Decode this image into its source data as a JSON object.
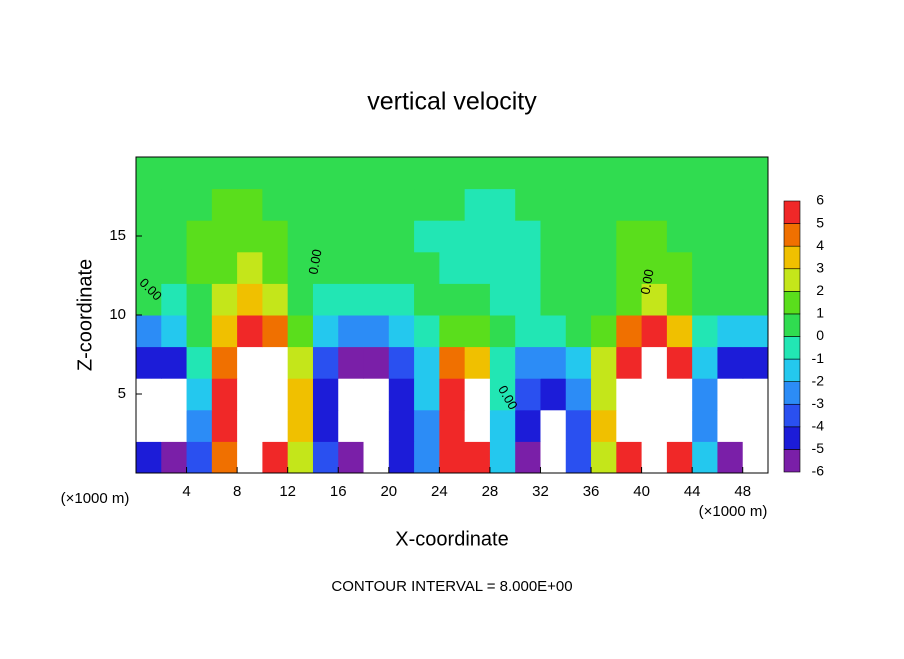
{
  "chart_data": {
    "type": "heatmap",
    "title": "vertical velocity",
    "x_label": "X-coordinate",
    "y_label": "Z-coordinate",
    "x_unit_labels": [
      "(×1000 m)",
      "(×1000 m)"
    ],
    "note": "CONTOUR INTERVAL = 8.000E+00",
    "contour_labels": [
      "0.00",
      "0.00",
      "0.00",
      "0.00"
    ],
    "xlim": [
      0,
      50
    ],
    "ylim": [
      0,
      20
    ],
    "xticks": [
      4,
      8,
      12,
      16,
      20,
      24,
      28,
      32,
      36,
      40,
      44,
      48
    ],
    "yticks": [
      5,
      10,
      15
    ],
    "x": [
      1,
      3,
      5,
      7,
      9,
      11,
      13,
      15,
      17,
      19,
      21,
      23,
      25,
      27,
      29,
      31,
      33,
      35,
      37,
      39,
      41,
      43,
      45,
      47,
      49
    ],
    "z": [
      1,
      3,
      5,
      7,
      9,
      11,
      13,
      15,
      17,
      19
    ],
    "values": [
      [
        -5,
        -6,
        -4,
        4,
        7,
        6,
        2,
        -4,
        -6,
        -7,
        -5,
        -3,
        5,
        6,
        -2,
        -6,
        -7,
        -4,
        2,
        6,
        8,
        6,
        -2,
        -6,
        -7
      ],
      [
        -7,
        -7,
        -3,
        5,
        8,
        8,
        3,
        -5,
        -7,
        -8,
        -5,
        -3,
        6,
        7,
        -2,
        -5,
        -7,
        -4,
        3,
        7,
        9,
        8,
        -3,
        -7,
        -8
      ],
      [
        -7,
        -7,
        -2,
        5,
        9,
        8,
        3,
        -5,
        -7,
        -8,
        -5,
        -2,
        6,
        7,
        -1,
        -4,
        -5,
        -3,
        2,
        7,
        9,
        8,
        -3,
        -7,
        -7
      ],
      [
        -5,
        -5,
        -1,
        4,
        8,
        7,
        2,
        -4,
        -6,
        -6,
        -4,
        -2,
        4,
        3,
        -1,
        -3,
        -3,
        -2,
        2,
        6,
        8,
        6,
        -2,
        -5,
        -5
      ],
      [
        -3,
        -2,
        0,
        3,
        5,
        4,
        1,
        -2,
        -3,
        -3,
        -2,
        -1,
        1,
        1,
        0,
        -1,
        -1,
        0,
        1,
        4,
        5,
        3,
        -1,
        -2,
        -2
      ],
      [
        0,
        -1,
        0,
        2,
        3,
        2,
        0,
        -1,
        -1,
        -1,
        -1,
        0,
        0,
        0,
        -1,
        -1,
        0,
        0,
        0,
        1,
        2,
        1,
        0,
        0,
        0
      ],
      [
        0,
        0,
        1,
        1,
        2,
        1,
        0,
        0,
        0,
        0,
        0,
        0,
        -1,
        -1,
        -1,
        -1,
        0,
        0,
        0,
        1,
        1,
        1,
        0,
        0,
        0
      ],
      [
        0,
        0,
        1,
        1,
        1,
        1,
        0,
        0,
        0,
        0,
        0,
        -1,
        -1,
        -1,
        -1,
        -1,
        0,
        0,
        0,
        1,
        1,
        0,
        0,
        0,
        0
      ],
      [
        0,
        0,
        0,
        1,
        1,
        0,
        0,
        0,
        0,
        0,
        0,
        0,
        0,
        -1,
        -1,
        0,
        0,
        0,
        0,
        0,
        0,
        0,
        0,
        0,
        0
      ],
      [
        0,
        0,
        0,
        0,
        0,
        0,
        0,
        0,
        0,
        0,
        0,
        0,
        0,
        0,
        0,
        0,
        0,
        0,
        0,
        0,
        0,
        0,
        0,
        0,
        0
      ]
    ],
    "colorbar_ticks": [
      -6,
      -5,
      -4,
      -3,
      -2,
      -1,
      0,
      1,
      2,
      3,
      4,
      5,
      6
    ],
    "colors": [
      "#7a1fa8",
      "#1c1cd8",
      "#2a50f0",
      "#2c8cf6",
      "#24c8ee",
      "#22e6b4",
      "#30dc50",
      "#5ade1c",
      "#c4e61a",
      "#f0c000",
      "#f07000",
      "#f02828"
    ],
    "out_of_range_color": "#ffffff"
  }
}
